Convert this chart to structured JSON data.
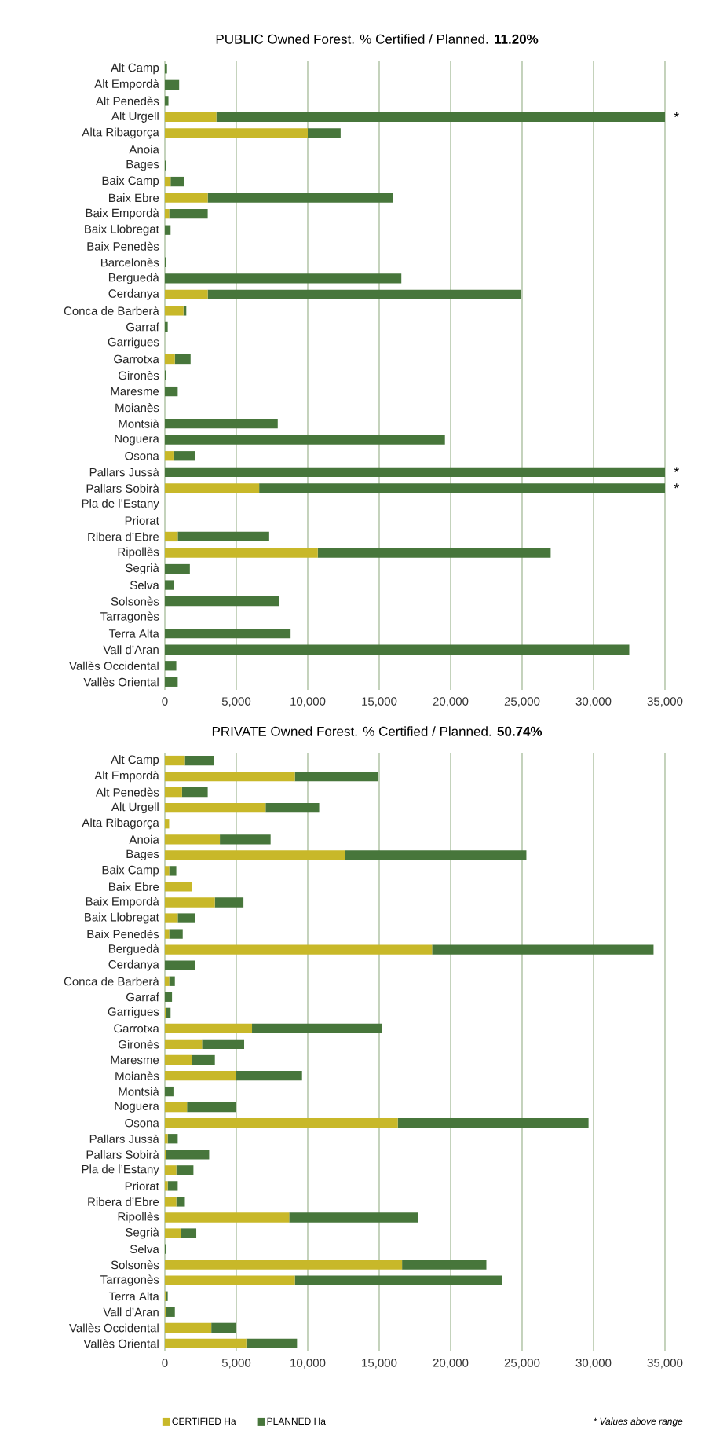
{
  "chart_data": [
    {
      "type": "bar",
      "orientation": "horizontal",
      "stacked": true,
      "title": "PUBLIC Owned Forest. % Certified / Planned. **11.20%**",
      "categories": [
        "Alt Camp",
        "Alt Empordà",
        "Alt Penedès",
        "Alt Urgell",
        "Alta Ribagorça",
        "Anoia",
        "Bages",
        "Baix Camp",
        "Baix Ebre",
        "Baix Empordà",
        "Baix Llobregat",
        "Baix Penedès",
        "Barcelonès",
        "Berguedà",
        "Cerdanya",
        "Conca de Barberà",
        "Garraf",
        "Garrigues",
        "Garrotxa",
        "Gironès",
        "Maresme",
        "Moianès",
        "Montsià",
        "Noguera",
        "Osona",
        "Pallars Jussà",
        "Pallars Sobirà",
        "Pla de l’Estany",
        "Priorat",
        "Ribera d’Ebre",
        "Ripollès",
        "Segrià",
        "Selva",
        "Solsonès",
        "Tarragonès",
        "Terra Alta",
        "Vall d’Aran",
        "Vallès Occidental",
        "Vallès Oriental"
      ],
      "series": [
        {
          "color": "#c8b829",
          "values": [
            0,
            0,
            0,
            3600,
            10000,
            0,
            0,
            400,
            3000,
            300,
            0,
            0,
            0,
            0,
            3000,
            1300,
            0,
            0,
            700,
            0,
            0,
            0,
            0,
            0,
            600,
            0,
            6600,
            0,
            0,
            900,
            10700,
            0,
            0,
            0,
            0,
            0,
            0,
            0,
            0
          ]
        },
        {
          "color": "#47763b",
          "values": [
            150,
            1000,
            250,
            31400,
            2300,
            0,
            100,
            950,
            12950,
            2700,
            400,
            0,
            100,
            16550,
            21900,
            200,
            200,
            0,
            1100,
            100,
            900,
            0,
            7900,
            19600,
            1500,
            35000,
            28400,
            0,
            0,
            6400,
            16300,
            1750,
            650,
            8000,
            0,
            8800,
            32500,
            800,
            900
          ]
        }
      ],
      "xlim": [
        0,
        35000
      ],
      "xticks": [
        0,
        {
          "value": 5000,
          "label": "5,000"
        },
        {
          "value": 10000,
          "label": "10,000"
        },
        {
          "value": 15000,
          "label": "15,000"
        },
        {
          "value": 20000,
          "label": "20,000"
        },
        {
          "value": 25000,
          "label": "25,000"
        },
        {
          "value": 30000,
          "label": "30,000"
        },
        {
          "value": 35000,
          "label": "35,000"
        }
      ],
      "grid": "x",
      "annotations": [
        "*",
        "*",
        "*"
      ]
    },
    {
      "type": "bar",
      "orientation": "horizontal",
      "stacked": true,
      "title": "PRIVATE Owned Forest. % Certified / Planned. **50.74%**",
      "categories": [
        "Alt Camp",
        "Alt Empordà",
        "Alt Penedès",
        "Alt Urgell",
        "Alta Ribagorça",
        "Anoia",
        "Bages",
        "Baix Camp",
        "Baix Ebre",
        "Baix Empordà",
        "Baix Llobregat",
        "Baix Penedès",
        "Berguedà",
        "Cerdanya",
        "Conca de Barberà",
        "Garraf",
        "Garrigues",
        "Garrotxa",
        "Gironès",
        "Maresme",
        "Moianès",
        "Montsià",
        "Noguera",
        "Osona",
        "Pallars Jussà",
        "Pallars Sobirà",
        "Pla de l’Estany",
        "Priorat",
        "Ribera d’Ebre",
        "Ripollès",
        "Segrià",
        "Selva",
        "Solsonès",
        "Tarragonès",
        "Terra Alta",
        "Vall d’Aran",
        "Vallès Occidental",
        "Vallès Oriental"
      ],
      "series": [
        {
          "name": "CERTIFIED Ha",
          "color": "#c8b829",
          "values": [
            1400,
            9100,
            1200,
            7050,
            300,
            3850,
            12600,
            300,
            1900,
            3500,
            900,
            300,
            18700,
            0,
            300,
            0,
            100,
            6100,
            2600,
            1900,
            4950,
            0,
            1550,
            16300,
            200,
            100,
            800,
            200,
            800,
            8700,
            1100,
            0,
            16600,
            9100,
            50,
            50,
            3250,
            5700
          ]
        },
        {
          "name": "PLANNED Ha",
          "color": "#47763b",
          "values": [
            2050,
            5800,
            1800,
            3750,
            0,
            3550,
            12700,
            500,
            0,
            2000,
            1200,
            950,
            15500,
            2100,
            400,
            500,
            300,
            9100,
            2950,
            1600,
            4650,
            600,
            3450,
            13350,
            700,
            3000,
            1200,
            700,
            600,
            9000,
            1100,
            100,
            5900,
            14500,
            150,
            650,
            1700,
            3550
          ]
        }
      ],
      "xlim": [
        0,
        35000
      ],
      "xticks": [
        0,
        {
          "value": 5000,
          "label": "5,000"
        },
        {
          "value": 10000,
          "label": "10,000"
        },
        {
          "value": 15000,
          "label": "15,000"
        },
        {
          "value": 20000,
          "label": "20,000"
        },
        {
          "value": 25000,
          "label": "25,000"
        },
        {
          "value": 30000,
          "label": "30,000"
        },
        {
          "value": 35000,
          "label": "35,000"
        }
      ],
      "grid": "x",
      "legend": "bottom",
      "annotations": [
        "* Values above range"
      ]
    }
  ]
}
